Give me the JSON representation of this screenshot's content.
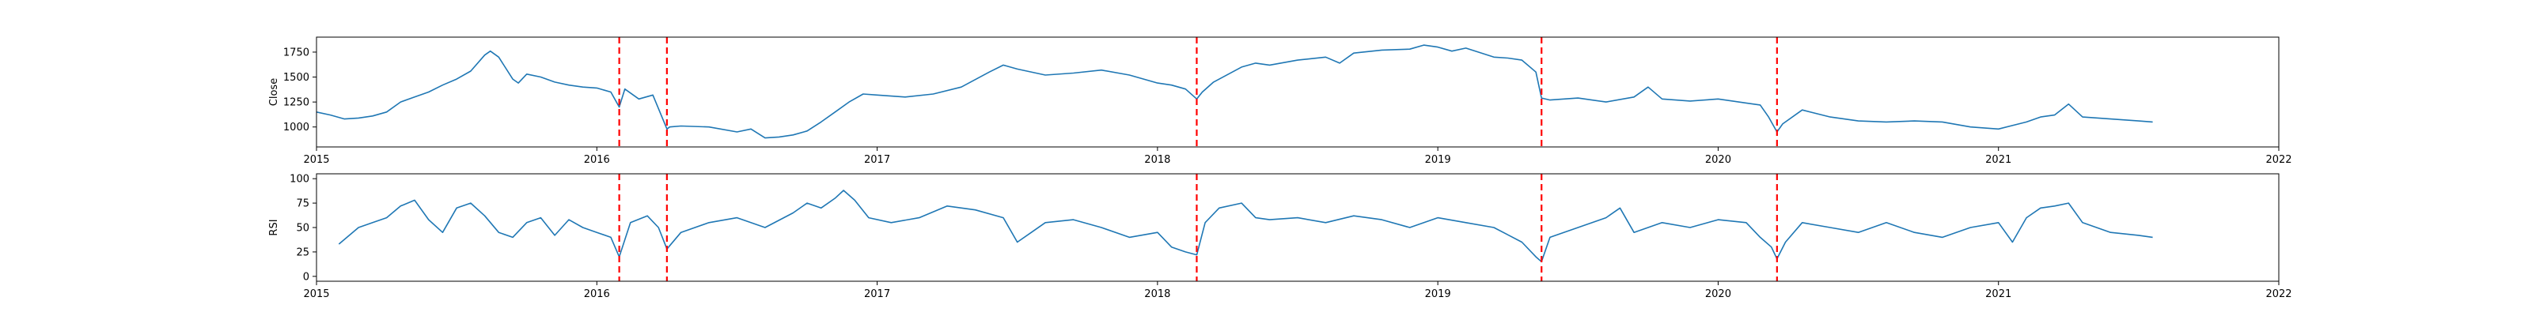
{
  "colors": {
    "series": "#1f77b4",
    "event_line": "#ff0000",
    "background": "#ffffff"
  },
  "chart_data": [
    {
      "type": "line",
      "title": "",
      "xlabel": "",
      "ylabel": "Close",
      "xlim": [
        2015,
        2022
      ],
      "ylim": [
        800,
        1900
      ],
      "x_ticks": [
        {
          "value": 2015,
          "label": "2015"
        },
        {
          "value": 2016,
          "label": "2016"
        },
        {
          "value": 2017,
          "label": "2017"
        },
        {
          "value": 2018,
          "label": "2018"
        },
        {
          "value": 2019,
          "label": "2019"
        },
        {
          "value": 2020,
          "label": "2020"
        },
        {
          "value": 2021,
          "label": "2021"
        },
        {
          "value": 2022,
          "label": "2022"
        }
      ],
      "y_ticks": [
        {
          "value": 1000,
          "label": "1000"
        },
        {
          "value": 1250,
          "label": "1250"
        },
        {
          "value": 1500,
          "label": "1500"
        },
        {
          "value": 1750,
          "label": "1750"
        }
      ],
      "grid": false,
      "event_lines_x": [
        2016.08,
        2016.25,
        2018.14,
        2019.37,
        2020.21
      ],
      "series": [
        {
          "x": [
            2015.0,
            2015.05,
            2015.1,
            2015.15,
            2015.2,
            2015.25,
            2015.3,
            2015.35,
            2015.4,
            2015.45,
            2015.5,
            2015.55,
            2015.6,
            2015.62,
            2015.65,
            2015.7,
            2015.72,
            2015.75,
            2015.8,
            2015.85,
            2015.9,
            2015.95,
            2016.0,
            2016.05,
            2016.08,
            2016.1,
            2016.15,
            2016.2,
            2016.25,
            2016.26,
            2016.3,
            2016.4,
            2016.5,
            2016.55,
            2016.6,
            2016.65,
            2016.7,
            2016.75,
            2016.8,
            2016.85,
            2016.9,
            2016.95,
            2017.0,
            2017.1,
            2017.2,
            2017.3,
            2017.4,
            2017.45,
            2017.5,
            2017.6,
            2017.7,
            2017.8,
            2017.9,
            2018.0,
            2018.05,
            2018.1,
            2018.14,
            2018.16,
            2018.2,
            2018.3,
            2018.35,
            2018.4,
            2018.5,
            2018.6,
            2018.65,
            2018.7,
            2018.8,
            2018.9,
            2018.95,
            2019.0,
            2019.05,
            2019.1,
            2019.2,
            2019.25,
            2019.3,
            2019.35,
            2019.37,
            2019.4,
            2019.5,
            2019.6,
            2019.7,
            2019.75,
            2019.8,
            2019.9,
            2020.0,
            2020.1,
            2020.15,
            2020.18,
            2020.21,
            2020.23,
            2020.3,
            2020.4,
            2020.5,
            2020.6,
            2020.7,
            2020.8,
            2020.9,
            2021.0,
            2021.1,
            2021.15,
            2021.2,
            2021.25,
            2021.3,
            2021.4,
            2021.5,
            2021.55
          ],
          "y": [
            1150,
            1120,
            1080,
            1090,
            1110,
            1150,
            1250,
            1300,
            1350,
            1420,
            1480,
            1560,
            1720,
            1760,
            1700,
            1480,
            1440,
            1530,
            1500,
            1450,
            1420,
            1400,
            1390,
            1350,
            1200,
            1380,
            1280,
            1320,
            980,
            1000,
            1010,
            1000,
            950,
            980,
            890,
            900,
            920,
            960,
            1050,
            1150,
            1250,
            1330,
            1320,
            1300,
            1330,
            1400,
            1550,
            1620,
            1580,
            1520,
            1540,
            1570,
            1520,
            1440,
            1420,
            1380,
            1280,
            1350,
            1450,
            1600,
            1640,
            1620,
            1670,
            1700,
            1640,
            1740,
            1770,
            1780,
            1820,
            1800,
            1760,
            1790,
            1700,
            1690,
            1670,
            1550,
            1290,
            1270,
            1290,
            1250,
            1300,
            1400,
            1280,
            1260,
            1280,
            1240,
            1220,
            1100,
            950,
            1030,
            1170,
            1100,
            1060,
            1050,
            1060,
            1050,
            1000,
            980,
            1050,
            1100,
            1120,
            1230,
            1100,
            1080,
            1060,
            1050
          ]
        }
      ]
    },
    {
      "type": "line",
      "title": "",
      "xlabel": "",
      "ylabel": "RSI",
      "xlim": [
        2015,
        2022
      ],
      "ylim": [
        -5,
        105
      ],
      "x_ticks": [
        {
          "value": 2015,
          "label": "2015"
        },
        {
          "value": 2016,
          "label": "2016"
        },
        {
          "value": 2017,
          "label": "2017"
        },
        {
          "value": 2018,
          "label": "2018"
        },
        {
          "value": 2019,
          "label": "2019"
        },
        {
          "value": 2020,
          "label": "2020"
        },
        {
          "value": 2021,
          "label": "2021"
        },
        {
          "value": 2022,
          "label": "2022"
        }
      ],
      "y_ticks": [
        {
          "value": 0,
          "label": "0"
        },
        {
          "value": 25,
          "label": "25"
        },
        {
          "value": 50,
          "label": "50"
        },
        {
          "value": 75,
          "label": "75"
        },
        {
          "value": 100,
          "label": "100"
        }
      ],
      "grid": false,
      "event_lines_x": [
        2016.08,
        2016.25,
        2018.14,
        2019.37,
        2020.21
      ],
      "series": [
        {
          "x": [
            2015.08,
            2015.15,
            2015.2,
            2015.25,
            2015.3,
            2015.35,
            2015.4,
            2015.45,
            2015.5,
            2015.55,
            2015.6,
            2015.65,
            2015.7,
            2015.75,
            2015.8,
            2015.85,
            2015.9,
            2015.95,
            2016.0,
            2016.05,
            2016.08,
            2016.12,
            2016.18,
            2016.22,
            2016.25,
            2016.3,
            2016.4,
            2016.5,
            2016.6,
            2016.7,
            2016.75,
            2016.8,
            2016.85,
            2016.88,
            2016.92,
            2016.97,
            2017.05,
            2017.15,
            2017.25,
            2017.35,
            2017.45,
            2017.5,
            2017.55,
            2017.6,
            2017.7,
            2017.8,
            2017.9,
            2018.0,
            2018.05,
            2018.1,
            2018.14,
            2018.17,
            2018.22,
            2018.3,
            2018.35,
            2018.4,
            2018.5,
            2018.6,
            2018.7,
            2018.8,
            2018.9,
            2019.0,
            2019.1,
            2019.2,
            2019.3,
            2019.35,
            2019.37,
            2019.4,
            2019.5,
            2019.6,
            2019.65,
            2019.7,
            2019.8,
            2019.9,
            2020.0,
            2020.1,
            2020.15,
            2020.19,
            2020.21,
            2020.24,
            2020.3,
            2020.4,
            2020.5,
            2020.6,
            2020.7,
            2020.8,
            2020.9,
            2021.0,
            2021.05,
            2021.1,
            2021.15,
            2021.2,
            2021.25,
            2021.3,
            2021.35,
            2021.4,
            2021.5,
            2021.55
          ],
          "y": [
            33,
            50,
            55,
            60,
            72,
            78,
            58,
            45,
            70,
            75,
            62,
            45,
            40,
            55,
            60,
            42,
            58,
            50,
            45,
            40,
            20,
            55,
            62,
            50,
            28,
            45,
            55,
            60,
            50,
            65,
            75,
            70,
            80,
            88,
            78,
            60,
            55,
            60,
            72,
            68,
            60,
            35,
            45,
            55,
            58,
            50,
            40,
            45,
            30,
            25,
            22,
            55,
            70,
            75,
            60,
            58,
            60,
            55,
            62,
            58,
            50,
            60,
            55,
            50,
            35,
            20,
            15,
            40,
            50,
            60,
            70,
            45,
            55,
            50,
            58,
            55,
            40,
            30,
            18,
            35,
            55,
            50,
            45,
            55,
            45,
            40,
            50,
            55,
            35,
            60,
            70,
            72,
            75,
            55,
            50,
            45,
            42,
            40
          ]
        }
      ]
    }
  ]
}
